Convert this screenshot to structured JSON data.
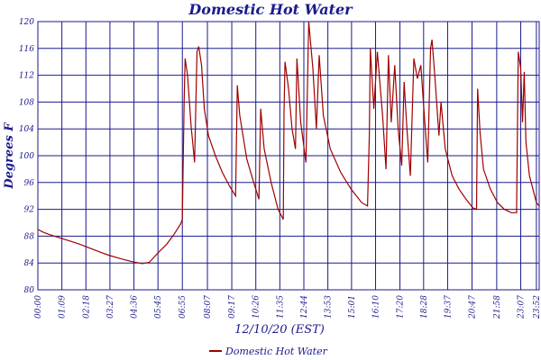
{
  "chart_data": {
    "type": "line",
    "title": "Domestic Hot Water",
    "xlabel": "12/10/20 (EST)",
    "ylabel": "Degrees F",
    "ylim": [
      80,
      120
    ],
    "yticks": [
      80,
      84,
      88,
      92,
      96,
      100,
      104,
      108,
      112,
      116,
      120
    ],
    "xlim_hours": [
      0,
      24
    ],
    "xticks": [
      "00:00",
      "01:09",
      "02:18",
      "03:27",
      "04:36",
      "05:45",
      "06:55",
      "08:07",
      "09:17",
      "10:26",
      "11:35",
      "12:44",
      "13:53",
      "15:01",
      "16:10",
      "17:20",
      "18:28",
      "19:37",
      "20:47",
      "21:58",
      "23:07",
      "23:52"
    ],
    "grid": true,
    "legend_position": "bottom",
    "colors": {
      "series": "#a00000",
      "grid": "#1a1a8c",
      "text": "#1a1a8c"
    },
    "series": [
      {
        "name": "Domestic Hot Water",
        "points": [
          [
            "00:00",
            89.0
          ],
          [
            "00:15",
            88.6
          ],
          [
            "00:30",
            88.3
          ],
          [
            "01:00",
            87.8
          ],
          [
            "01:30",
            87.3
          ],
          [
            "02:00",
            86.8
          ],
          [
            "02:30",
            86.2
          ],
          [
            "03:00",
            85.6
          ],
          [
            "03:27",
            85.1
          ],
          [
            "04:00",
            84.6
          ],
          [
            "04:30",
            84.2
          ],
          [
            "05:00",
            83.9
          ],
          [
            "05:20",
            84.1
          ],
          [
            "05:45",
            85.5
          ],
          [
            "06:10",
            86.8
          ],
          [
            "06:30",
            88.2
          ],
          [
            "06:50",
            89.8
          ],
          [
            "06:55",
            90.5
          ],
          [
            "07:00",
            108.0
          ],
          [
            "07:03",
            114.5
          ],
          [
            "07:10",
            112.0
          ],
          [
            "07:20",
            104.5
          ],
          [
            "07:30",
            99.0
          ],
          [
            "07:37",
            115.5
          ],
          [
            "07:42",
            116.3
          ],
          [
            "07:50",
            113.5
          ],
          [
            "07:58",
            107.0
          ],
          [
            "08:10",
            103.0
          ],
          [
            "08:30",
            100.0
          ],
          [
            "08:50",
            97.5
          ],
          [
            "09:10",
            95.5
          ],
          [
            "09:28",
            94.0
          ],
          [
            "09:33",
            110.5
          ],
          [
            "09:40",
            106.0
          ],
          [
            "10:00",
            99.5
          ],
          [
            "10:20",
            96.0
          ],
          [
            "10:35",
            93.5
          ],
          [
            "10:40",
            107.0
          ],
          [
            "10:50",
            101.0
          ],
          [
            "11:10",
            96.0
          ],
          [
            "11:30",
            92.0
          ],
          [
            "11:45",
            90.5
          ],
          [
            "11:47",
            106.5
          ],
          [
            "11:50",
            114.0
          ],
          [
            "12:00",
            110.0
          ],
          [
            "12:10",
            104.0
          ],
          [
            "12:20",
            101.0
          ],
          [
            "12:24",
            114.5
          ],
          [
            "12:35",
            105.0
          ],
          [
            "12:50",
            99.0
          ],
          [
            "12:58",
            120.0
          ],
          [
            "13:10",
            113.0
          ],
          [
            "13:20",
            104.0
          ],
          [
            "13:28",
            115.0
          ],
          [
            "13:40",
            106.0
          ],
          [
            "14:00",
            101.0
          ],
          [
            "14:30",
            97.5
          ],
          [
            "15:00",
            95.0
          ],
          [
            "15:30",
            93.0
          ],
          [
            "15:47",
            92.5
          ],
          [
            "15:52",
            103.0
          ],
          [
            "15:55",
            116.0
          ],
          [
            "16:05",
            107.0
          ],
          [
            "16:15",
            115.5
          ],
          [
            "16:30",
            106.0
          ],
          [
            "16:40",
            98.0
          ],
          [
            "16:47",
            115.0
          ],
          [
            "16:55",
            105.0
          ],
          [
            "17:05",
            113.5
          ],
          [
            "17:15",
            104.0
          ],
          [
            "17:25",
            98.5
          ],
          [
            "17:32",
            111.0
          ],
          [
            "17:40",
            104.0
          ],
          [
            "17:50",
            97.0
          ],
          [
            "18:00",
            114.5
          ],
          [
            "18:10",
            111.5
          ],
          [
            "18:20",
            113.5
          ],
          [
            "18:30",
            106.0
          ],
          [
            "18:40",
            99.0
          ],
          [
            "18:48",
            116.0
          ],
          [
            "18:52",
            117.3
          ],
          [
            "19:00",
            112.0
          ],
          [
            "19:12",
            103.0
          ],
          [
            "19:18",
            108.0
          ],
          [
            "19:30",
            101.0
          ],
          [
            "19:50",
            97.0
          ],
          [
            "20:10",
            95.0
          ],
          [
            "20:30",
            93.5
          ],
          [
            "20:50",
            92.2
          ],
          [
            "21:00",
            92.0
          ],
          [
            "21:03",
            110.0
          ],
          [
            "21:10",
            103.5
          ],
          [
            "21:20",
            98.0
          ],
          [
            "21:40",
            95.0
          ],
          [
            "22:00",
            93.0
          ],
          [
            "22:20",
            92.0
          ],
          [
            "22:40",
            91.5
          ],
          [
            "22:55",
            91.5
          ],
          [
            "23:00",
            115.5
          ],
          [
            "23:07",
            113.0
          ],
          [
            "23:12",
            105.0
          ],
          [
            "23:17",
            112.5
          ],
          [
            "23:22",
            102.0
          ],
          [
            "23:32",
            97.0
          ],
          [
            "23:42",
            95.0
          ],
          [
            "23:52",
            93.0
          ],
          [
            "24:00",
            92.5
          ]
        ]
      }
    ]
  }
}
